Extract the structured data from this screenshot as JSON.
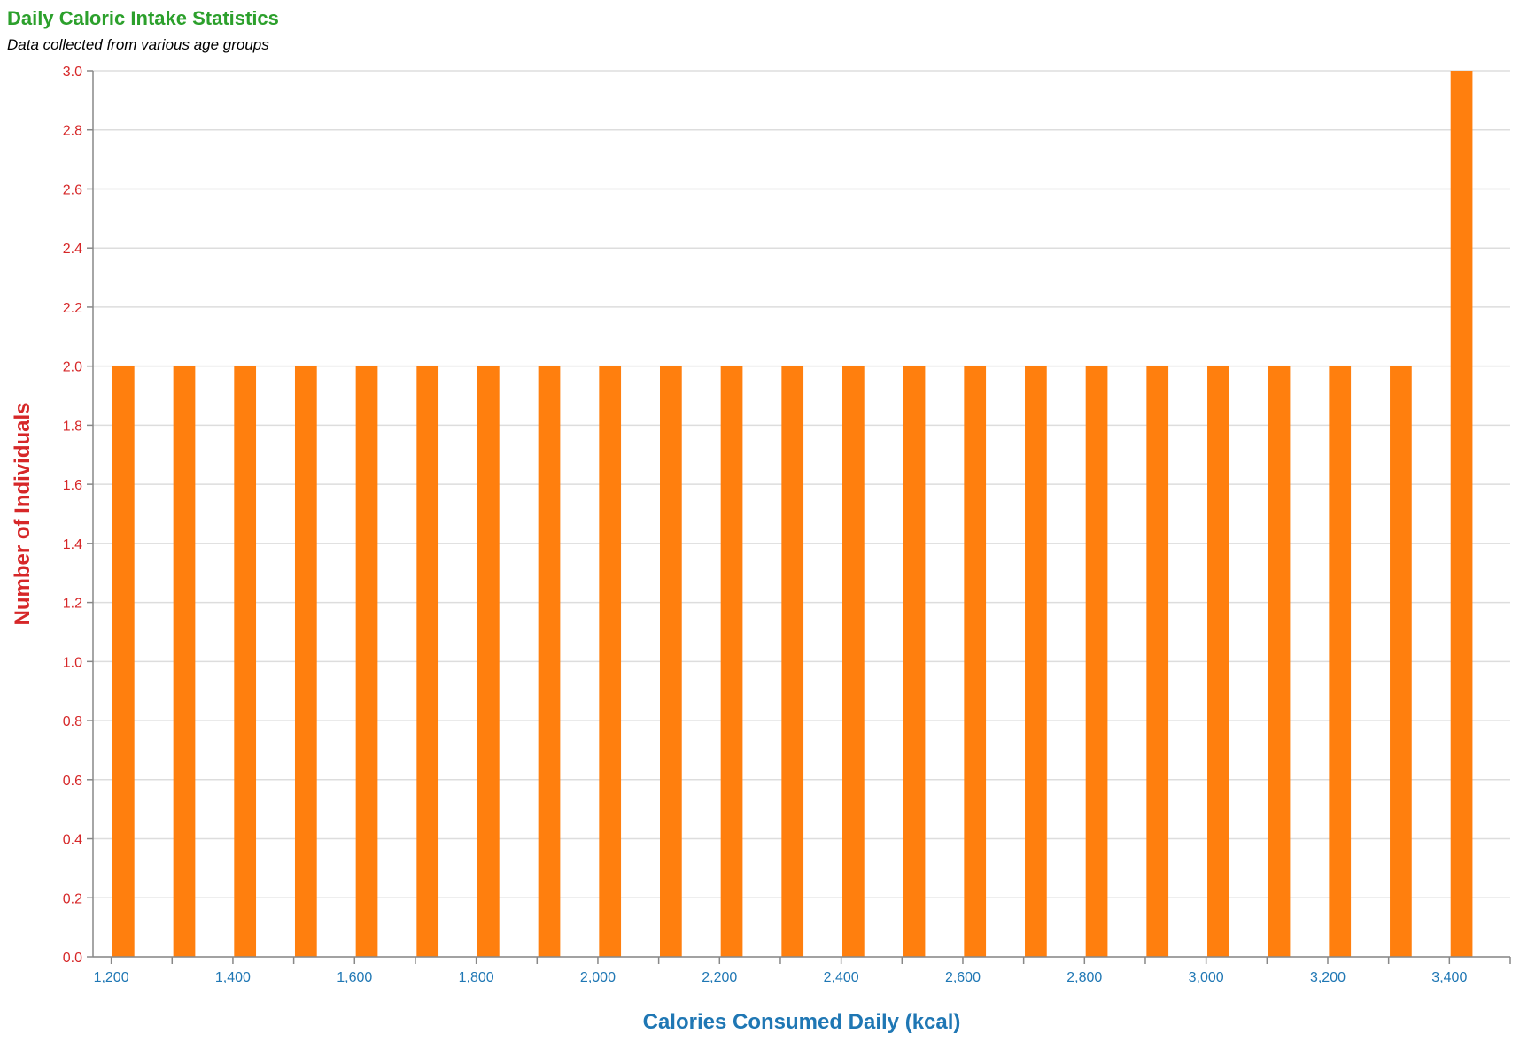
{
  "chart_data": {
    "type": "bar",
    "title": "Daily Caloric Intake Statistics",
    "subtitle": "Data collected from various age groups",
    "xlabel": "Calories Consumed Daily (kcal)",
    "ylabel": "Number of Individuals",
    "xlim": [
      1170,
      3500
    ],
    "ylim": [
      0,
      3
    ],
    "x_ticks": [
      "1,200",
      "1,400",
      "1,600",
      "1,800",
      "2,000",
      "2,200",
      "2,400",
      "2,600",
      "2,800",
      "3,000",
      "3,200",
      "3,400"
    ],
    "x_tick_values": [
      1200,
      1400,
      1600,
      1800,
      2000,
      2200,
      2400,
      2600,
      2800,
      3000,
      3200,
      3400
    ],
    "x_minor_ticks": [
      1300,
      1500,
      1700,
      1900,
      2100,
      2300,
      2500,
      2700,
      2900,
      3100,
      3300,
      3500
    ],
    "y_ticks": [
      "0.0",
      "0.2",
      "0.4",
      "0.6",
      "0.8",
      "1.0",
      "1.2",
      "1.4",
      "1.6",
      "1.8",
      "2.0",
      "2.2",
      "2.4",
      "2.6",
      "2.8",
      "3.0"
    ],
    "y_tick_values": [
      0,
      0.2,
      0.4,
      0.6,
      0.8,
      1.0,
      1.2,
      1.4,
      1.6,
      1.8,
      2.0,
      2.2,
      2.4,
      2.6,
      2.8,
      3.0
    ],
    "grid": "horizontal",
    "bar_width_kcal": 36,
    "bars": [
      {
        "x": 1220,
        "value": 2
      },
      {
        "x": 1320,
        "value": 2
      },
      {
        "x": 1420,
        "value": 2
      },
      {
        "x": 1520,
        "value": 2
      },
      {
        "x": 1620,
        "value": 2
      },
      {
        "x": 1720,
        "value": 2
      },
      {
        "x": 1820,
        "value": 2
      },
      {
        "x": 1920,
        "value": 2
      },
      {
        "x": 2020,
        "value": 2
      },
      {
        "x": 2120,
        "value": 2
      },
      {
        "x": 2220,
        "value": 2
      },
      {
        "x": 2320,
        "value": 2
      },
      {
        "x": 2420,
        "value": 2
      },
      {
        "x": 2520,
        "value": 2
      },
      {
        "x": 2620,
        "value": 2
      },
      {
        "x": 2720,
        "value": 2
      },
      {
        "x": 2820,
        "value": 2
      },
      {
        "x": 2920,
        "value": 2
      },
      {
        "x": 3020,
        "value": 2
      },
      {
        "x": 3120,
        "value": 2
      },
      {
        "x": 3220,
        "value": 2
      },
      {
        "x": 3320,
        "value": 2
      },
      {
        "x": 3420,
        "value": 3
      }
    ],
    "colors": {
      "bar": "#ff7f0e",
      "title": "#2ca02c",
      "subtitle": "#000000",
      "y_axis": "#d62728",
      "x_axis": "#1f77b4",
      "grid": "#dddddd",
      "axis_line": "#888888"
    }
  }
}
